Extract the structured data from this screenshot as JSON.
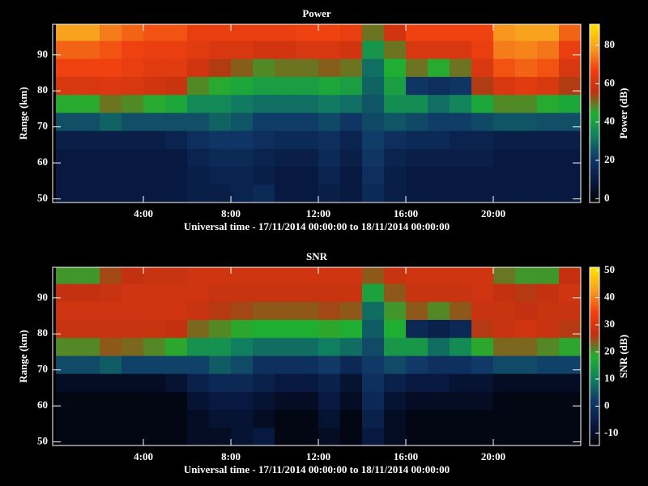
{
  "chart_data": [
    {
      "type": "heatmap",
      "title": "Power",
      "x_label": "Universal time - 17/11/2014 00:00:00 to 18/11/2014 00:00:00",
      "y_label": "Range (km)",
      "colorbar_label": "Power (dB)",
      "xlim": [
        -0.15,
        24
      ],
      "ylim": [
        49,
        98.5
      ],
      "zlim": [
        -2,
        91
      ],
      "xticks": [
        {
          "value": 4,
          "label": "4:00"
        },
        {
          "value": 8,
          "label": "8:00"
        },
        {
          "value": 12,
          "label": "12:00"
        },
        {
          "value": 16,
          "label": "16:00"
        },
        {
          "value": 20,
          "label": "20:00"
        }
      ],
      "yticks": [
        50,
        60,
        70,
        80,
        90
      ],
      "zticks": [
        0,
        20,
        40,
        60,
        80
      ],
      "colorscale": [
        "#000000",
        "#081840",
        "#103868",
        "#108060",
        "#20b030",
        "#c03010",
        "#f04010",
        "#f8a020",
        "#ffe000"
      ],
      "xbins": [
        0,
        1,
        2,
        3,
        4,
        5,
        6,
        7,
        8,
        9,
        10,
        11,
        12,
        13,
        14,
        15,
        16,
        17,
        18,
        19,
        20,
        21,
        22,
        23,
        24
      ],
      "ybins": [
        49,
        54,
        59,
        64,
        69,
        74,
        79,
        84,
        89,
        94,
        99
      ],
      "z": [
        [
          10,
          10,
          10,
          12,
          25,
          45,
          62,
          68,
          72,
          80
        ],
        [
          10,
          10,
          10,
          12,
          25,
          45,
          62,
          68,
          72,
          80
        ],
        [
          10,
          10,
          10,
          12,
          28,
          50,
          63,
          68,
          70,
          75
        ],
        [
          10,
          10,
          10,
          12,
          25,
          48,
          62,
          66,
          68,
          72
        ],
        [
          10,
          10,
          10,
          12,
          25,
          45,
          60,
          64,
          66,
          70
        ],
        [
          10,
          10,
          10,
          14,
          25,
          42,
          58,
          64,
          66,
          70
        ],
        [
          12,
          12,
          14,
          18,
          25,
          35,
          48,
          60,
          64,
          66
        ],
        [
          12,
          14,
          16,
          20,
          28,
          35,
          45,
          55,
          62,
          66
        ],
        [
          14,
          14,
          16,
          20,
          26,
          32,
          42,
          52,
          62,
          66
        ],
        [
          16,
          12,
          14,
          18,
          22,
          30,
          40,
          48,
          60,
          66
        ],
        [
          10,
          10,
          12,
          16,
          22,
          30,
          40,
          50,
          60,
          66
        ],
        [
          10,
          10,
          12,
          16,
          22,
          30,
          40,
          50,
          62,
          68
        ],
        [
          12,
          14,
          16,
          18,
          24,
          32,
          42,
          52,
          62,
          68
        ],
        [
          10,
          10,
          12,
          14,
          20,
          30,
          40,
          50,
          60,
          66
        ],
        [
          16,
          18,
          20,
          22,
          24,
          26,
          28,
          30,
          38,
          50
        ],
        [
          12,
          12,
          14,
          18,
          26,
          36,
          40,
          44,
          50,
          60
        ],
        [
          10,
          10,
          12,
          16,
          24,
          36,
          20,
          50,
          62,
          68
        ],
        [
          10,
          10,
          12,
          16,
          22,
          30,
          18,
          45,
          62,
          68
        ],
        [
          10,
          10,
          12,
          14,
          22,
          34,
          20,
          50,
          62,
          68
        ],
        [
          10,
          10,
          12,
          14,
          24,
          42,
          55,
          62,
          66,
          68
        ],
        [
          10,
          10,
          10,
          12,
          26,
          48,
          62,
          70,
          75,
          78
        ],
        [
          10,
          10,
          10,
          12,
          26,
          48,
          64,
          72,
          76,
          80
        ],
        [
          10,
          10,
          10,
          12,
          25,
          45,
          62,
          70,
          74,
          80
        ],
        [
          10,
          10,
          10,
          12,
          25,
          42,
          55,
          62,
          66,
          72
        ]
      ]
    },
    {
      "type": "heatmap",
      "title": "SNR",
      "x_label": "Universal time - 17/11/2014 00:00:00 to 18/11/2014 00:00:00",
      "y_label": "Range (km)",
      "colorbar_label": "SNR (dB)",
      "xlim": [
        -0.15,
        24
      ],
      "ylim": [
        49,
        98.5
      ],
      "zlim": [
        -14.5,
        51.2
      ],
      "xticks": [
        {
          "value": 4,
          "label": "4:00"
        },
        {
          "value": 8,
          "label": "8:00"
        },
        {
          "value": 12,
          "label": "12:00"
        },
        {
          "value": 16,
          "label": "16:00"
        },
        {
          "value": 20,
          "label": "20:00"
        }
      ],
      "yticks": [
        50,
        60,
        70,
        80,
        90
      ],
      "zticks": [
        -10,
        0,
        10,
        20,
        30,
        40,
        50
      ],
      "colorscale": [
        "#000000",
        "#081840",
        "#103868",
        "#108060",
        "#20b030",
        "#c03010",
        "#f04010",
        "#f8a020",
        "#ffe000"
      ],
      "xbins": [
        0,
        1,
        2,
        3,
        4,
        5,
        6,
        7,
        8,
        9,
        10,
        11,
        12,
        13,
        14,
        15,
        16,
        17,
        18,
        19,
        20,
        21,
        22,
        23,
        24
      ],
      "ybins": [
        49,
        54,
        59,
        64,
        69,
        74,
        79,
        84,
        89,
        94,
        99
      ],
      "z": [
        [
          -12,
          -12,
          -12,
          -10,
          4,
          21,
          28,
          29,
          27,
          20
        ],
        [
          -12,
          -12,
          -12,
          -10,
          4,
          21,
          28,
          29,
          27,
          20
        ],
        [
          -12,
          -12,
          -12,
          -10,
          6,
          24,
          28,
          29,
          28,
          25
        ],
        [
          -12,
          -12,
          -12,
          -10,
          3,
          23,
          28,
          29,
          29,
          27
        ],
        [
          -12,
          -12,
          -12,
          -10,
          3,
          21,
          28,
          29,
          29,
          28
        ],
        [
          -12,
          -12,
          -12,
          -8,
          3,
          19,
          27,
          29,
          29,
          28
        ],
        [
          -10,
          -10,
          -8,
          -4,
          3,
          13,
          23,
          28,
          29,
          29
        ],
        [
          -10,
          -8,
          -6,
          -2,
          6,
          13,
          21,
          26,
          28,
          29
        ],
        [
          -8,
          -8,
          -6,
          -2,
          4,
          10,
          19,
          25,
          28,
          29
        ],
        [
          -6,
          -10,
          -8,
          -4,
          0,
          8,
          18,
          24,
          28,
          29
        ],
        [
          -12,
          -12,
          -10,
          -6,
          0,
          8,
          18,
          24,
          28,
          29
        ],
        [
          -12,
          -12,
          -10,
          -6,
          0,
          8,
          18,
          24,
          28,
          29
        ],
        [
          -10,
          -8,
          -6,
          -4,
          2,
          10,
          19,
          25,
          28,
          29
        ],
        [
          -12,
          -12,
          -10,
          -8,
          -2,
          8,
          18,
          24,
          28,
          29
        ],
        [
          -6,
          -4,
          -2,
          0,
          2,
          4,
          6,
          8,
          16,
          24
        ],
        [
          -10,
          -10,
          -8,
          -4,
          4,
          14,
          18,
          20,
          24,
          28
        ],
        [
          -12,
          -12,
          -10,
          -6,
          2,
          14,
          -2,
          24,
          28,
          29
        ],
        [
          -12,
          -12,
          -10,
          -6,
          0,
          8,
          -4,
          21,
          28,
          29
        ],
        [
          -12,
          -12,
          -10,
          -8,
          0,
          12,
          -2,
          24,
          28,
          29
        ],
        [
          -12,
          -12,
          -10,
          -8,
          2,
          19,
          26,
          28,
          29,
          29
        ],
        [
          -12,
          -12,
          -12,
          -10,
          4,
          23,
          28,
          28,
          27,
          22
        ],
        [
          -12,
          -12,
          -12,
          -10,
          4,
          23,
          29,
          27,
          26,
          20
        ],
        [
          -12,
          -12,
          -12,
          -10,
          3,
          21,
          28,
          28,
          27,
          20
        ],
        [
          -12,
          -12,
          -12,
          -10,
          3,
          19,
          26,
          28,
          29,
          27
        ]
      ]
    }
  ]
}
